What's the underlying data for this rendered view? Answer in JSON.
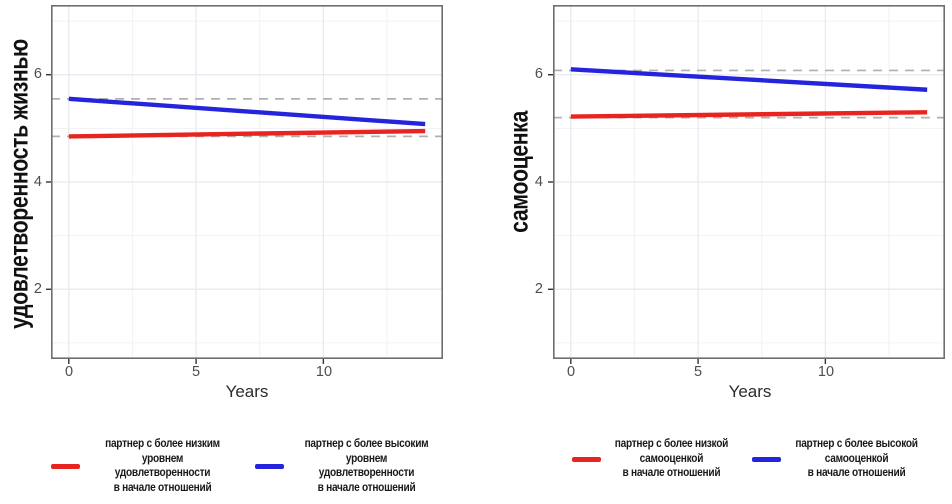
{
  "chart_data": [
    {
      "type": "line",
      "ylabel": "удовлетворенность жизнью",
      "xlabel": "Years",
      "xlim": [
        -0.7,
        14.7
      ],
      "ylim": [
        0.7,
        7.3
      ],
      "xticks": [
        0,
        5,
        10
      ],
      "yticks": [
        2,
        4,
        6
      ],
      "xticks_minor": [
        2.5,
        7.5,
        12.5
      ],
      "yticks_minor": [
        1,
        3,
        5,
        7
      ],
      "grid": true,
      "legend_position": "bottom",
      "x": [
        0,
        14
      ],
      "reference_line_color": "#b0b0b0",
      "series": [
        {
          "name": "партнер с более низким\nуровнем удовлетворенности\nв начале отношений",
          "color": "#e82420",
          "values": [
            4.85,
            4.95
          ],
          "dashed_reference": 4.85
        },
        {
          "name": "партнер с более высоким\nуровнем удовлетворенности\nв начале отношений",
          "color": "#2424dd",
          "values": [
            5.55,
            5.08
          ],
          "dashed_reference": 5.55
        }
      ]
    },
    {
      "type": "line",
      "ylabel": "самооценка",
      "xlabel": "Years",
      "xlim": [
        -0.7,
        14.7
      ],
      "ylim": [
        0.7,
        7.3
      ],
      "xticks": [
        0,
        5,
        10
      ],
      "yticks": [
        2,
        4,
        6
      ],
      "xticks_minor": [
        2.5,
        7.5,
        12.5
      ],
      "yticks_minor": [
        1,
        3,
        5,
        7
      ],
      "grid": true,
      "legend_position": "bottom",
      "x": [
        0,
        14
      ],
      "reference_line_color": "#b0b0b0",
      "series": [
        {
          "name": "партнер с более низкой\nсамооценкой\nв начале отношений",
          "color": "#e82420",
          "values": [
            5.22,
            5.3
          ],
          "dashed_reference": 5.2
        },
        {
          "name": "партнер с более высокой\nсамооценкой\nв начале отношений",
          "color": "#2424dd",
          "values": [
            6.1,
            5.72
          ],
          "dashed_reference": 6.08
        }
      ]
    }
  ]
}
